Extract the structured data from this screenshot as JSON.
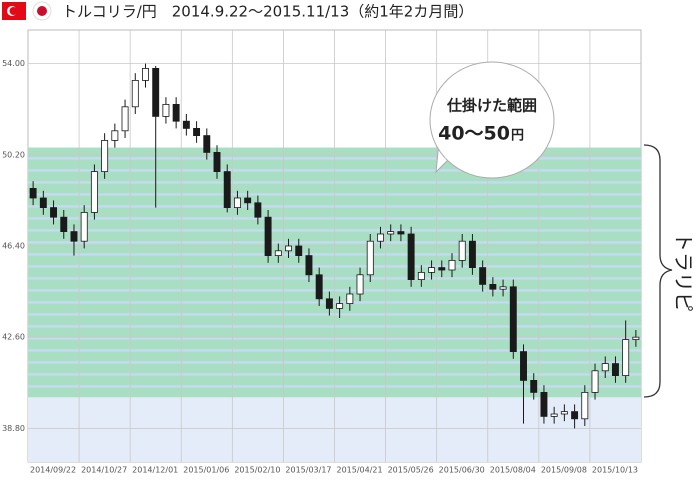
{
  "header": {
    "title": "トルコリラ/円　2014.9.22～2015.11/13（約1年2カ月間）"
  },
  "chart_data": {
    "type": "candlestick",
    "categories": [
      "2014/09/22",
      null,
      null,
      null,
      null,
      "2014/10/27",
      null,
      null,
      null,
      null,
      "2014/12/01",
      null,
      null,
      null,
      null,
      "2015/01/06",
      null,
      null,
      null,
      null,
      "2015/02/10",
      null,
      null,
      null,
      null,
      "2015/03/17",
      null,
      null,
      null,
      null,
      "2015/04/21",
      null,
      null,
      null,
      null,
      "2015/05/26",
      null,
      null,
      null,
      null,
      "2015/06/30",
      null,
      null,
      null,
      null,
      "2015/08/04",
      null,
      null,
      null,
      null,
      "2015/09/08",
      null,
      null,
      null,
      null,
      "2015/10/13",
      null,
      null,
      null,
      null
    ],
    "open": [
      48.8,
      48.4,
      48.0,
      47.6,
      47.0,
      46.6,
      47.8,
      49.5,
      50.8,
      51.2,
      52.2,
      53.3,
      53.8,
      51.8,
      52.3,
      51.6,
      51.3,
      51.0,
      50.3,
      49.5,
      48.0,
      48.4,
      48.2,
      47.6,
      46.0,
      46.2,
      46.4,
      46.0,
      45.2,
      44.2,
      43.8,
      44.0,
      44.4,
      45.2,
      46.6,
      46.9,
      47.0,
      46.9,
      45.0,
      45.3,
      45.5,
      45.4,
      45.8,
      46.6,
      45.5,
      44.8,
      44.6,
      44.7,
      42.0,
      40.8,
      40.3,
      39.3,
      39.4,
      39.5,
      39.2,
      40.3,
      41.2,
      41.5,
      41.0,
      42.5
    ],
    "high": [
      49.1,
      48.7,
      48.3,
      47.9,
      47.3,
      48.1,
      49.8,
      51.1,
      51.5,
      52.5,
      53.6,
      54.0,
      53.9,
      52.6,
      52.6,
      51.9,
      51.6,
      51.3,
      50.6,
      49.8,
      48.7,
      48.7,
      48.5,
      47.9,
      46.5,
      46.7,
      46.7,
      46.3,
      45.5,
      44.5,
      44.3,
      44.7,
      45.5,
      46.9,
      47.2,
      47.3,
      47.3,
      47.2,
      45.6,
      45.8,
      45.8,
      46.1,
      46.9,
      46.9,
      45.8,
      45.1,
      45.0,
      45.0,
      42.3,
      41.1,
      40.6,
      39.7,
      39.8,
      39.8,
      40.6,
      41.5,
      41.8,
      41.8,
      43.3,
      42.9
    ],
    "low": [
      48.1,
      47.7,
      47.3,
      46.7,
      46.0,
      46.3,
      47.5,
      49.2,
      50.5,
      50.9,
      51.9,
      53.0,
      48.0,
      51.5,
      51.3,
      51.0,
      50.7,
      50.0,
      49.2,
      47.8,
      47.7,
      47.9,
      47.3,
      45.7,
      45.7,
      45.9,
      45.7,
      44.9,
      43.9,
      43.5,
      43.4,
      43.7,
      44.1,
      44.9,
      46.3,
      46.6,
      46.6,
      44.7,
      44.7,
      45.0,
      45.1,
      45.1,
      45.5,
      45.2,
      44.5,
      44.3,
      44.3,
      41.7,
      39.0,
      40.0,
      39.0,
      39.0,
      39.1,
      38.8,
      38.9,
      40.0,
      40.9,
      40.7,
      40.7,
      42.2
    ],
    "close": [
      48.4,
      48.0,
      47.6,
      47.0,
      46.6,
      47.8,
      49.5,
      50.8,
      51.2,
      52.2,
      53.3,
      53.8,
      51.8,
      52.3,
      51.6,
      51.3,
      51.0,
      50.3,
      49.5,
      48.0,
      48.4,
      48.2,
      47.6,
      46.0,
      46.2,
      46.4,
      46.0,
      45.2,
      44.2,
      43.8,
      44.0,
      44.4,
      45.2,
      46.6,
      46.9,
      47.0,
      46.9,
      45.0,
      45.3,
      45.5,
      45.4,
      45.8,
      46.6,
      45.5,
      44.8,
      44.6,
      44.7,
      42.0,
      40.8,
      40.3,
      39.3,
      39.4,
      39.5,
      39.2,
      40.3,
      41.2,
      41.5,
      41.0,
      42.5,
      42.6
    ],
    "ylim": [
      37.4,
      55.4
    ],
    "yticks": [
      {
        "value": 38.8,
        "label": "38.80"
      },
      {
        "value": 42.6,
        "label": "42.60"
      },
      {
        "value": 46.4,
        "label": "46.40"
      },
      {
        "value": 50.2,
        "label": "50.20"
      },
      {
        "value": 54.0,
        "label": "54.00"
      }
    ],
    "grid": true,
    "up_color": "#ffffff",
    "down_color": "#1a1a1a",
    "wick_color": "#1a1a1a",
    "zone": [
      40.1,
      50.5
    ],
    "zone_color": "#c6daf1",
    "below_zone_color": "#e3ecf8",
    "band_color": "#a8dfc2",
    "bands": [
      [
        40.1,
        40.5
      ],
      [
        40.6,
        41.0
      ],
      [
        41.1,
        41.5
      ],
      [
        41.6,
        42.0
      ],
      [
        42.1,
        42.5
      ],
      [
        42.6,
        43.0
      ],
      [
        43.1,
        43.5
      ],
      [
        43.6,
        44.0
      ],
      [
        44.1,
        44.5
      ],
      [
        44.6,
        45.0
      ],
      [
        45.1,
        45.5
      ],
      [
        45.6,
        46.0
      ],
      [
        46.1,
        46.5
      ],
      [
        46.6,
        47.0
      ],
      [
        47.1,
        47.5
      ],
      [
        47.6,
        48.0
      ],
      [
        48.1,
        48.5
      ],
      [
        48.6,
        49.0
      ],
      [
        49.1,
        49.5
      ],
      [
        49.6,
        50.0
      ],
      [
        50.1,
        50.5
      ]
    ],
    "annotation": [
      "仕掛けた範囲",
      "40～50",
      "円"
    ],
    "side_label": "トラリピ"
  }
}
